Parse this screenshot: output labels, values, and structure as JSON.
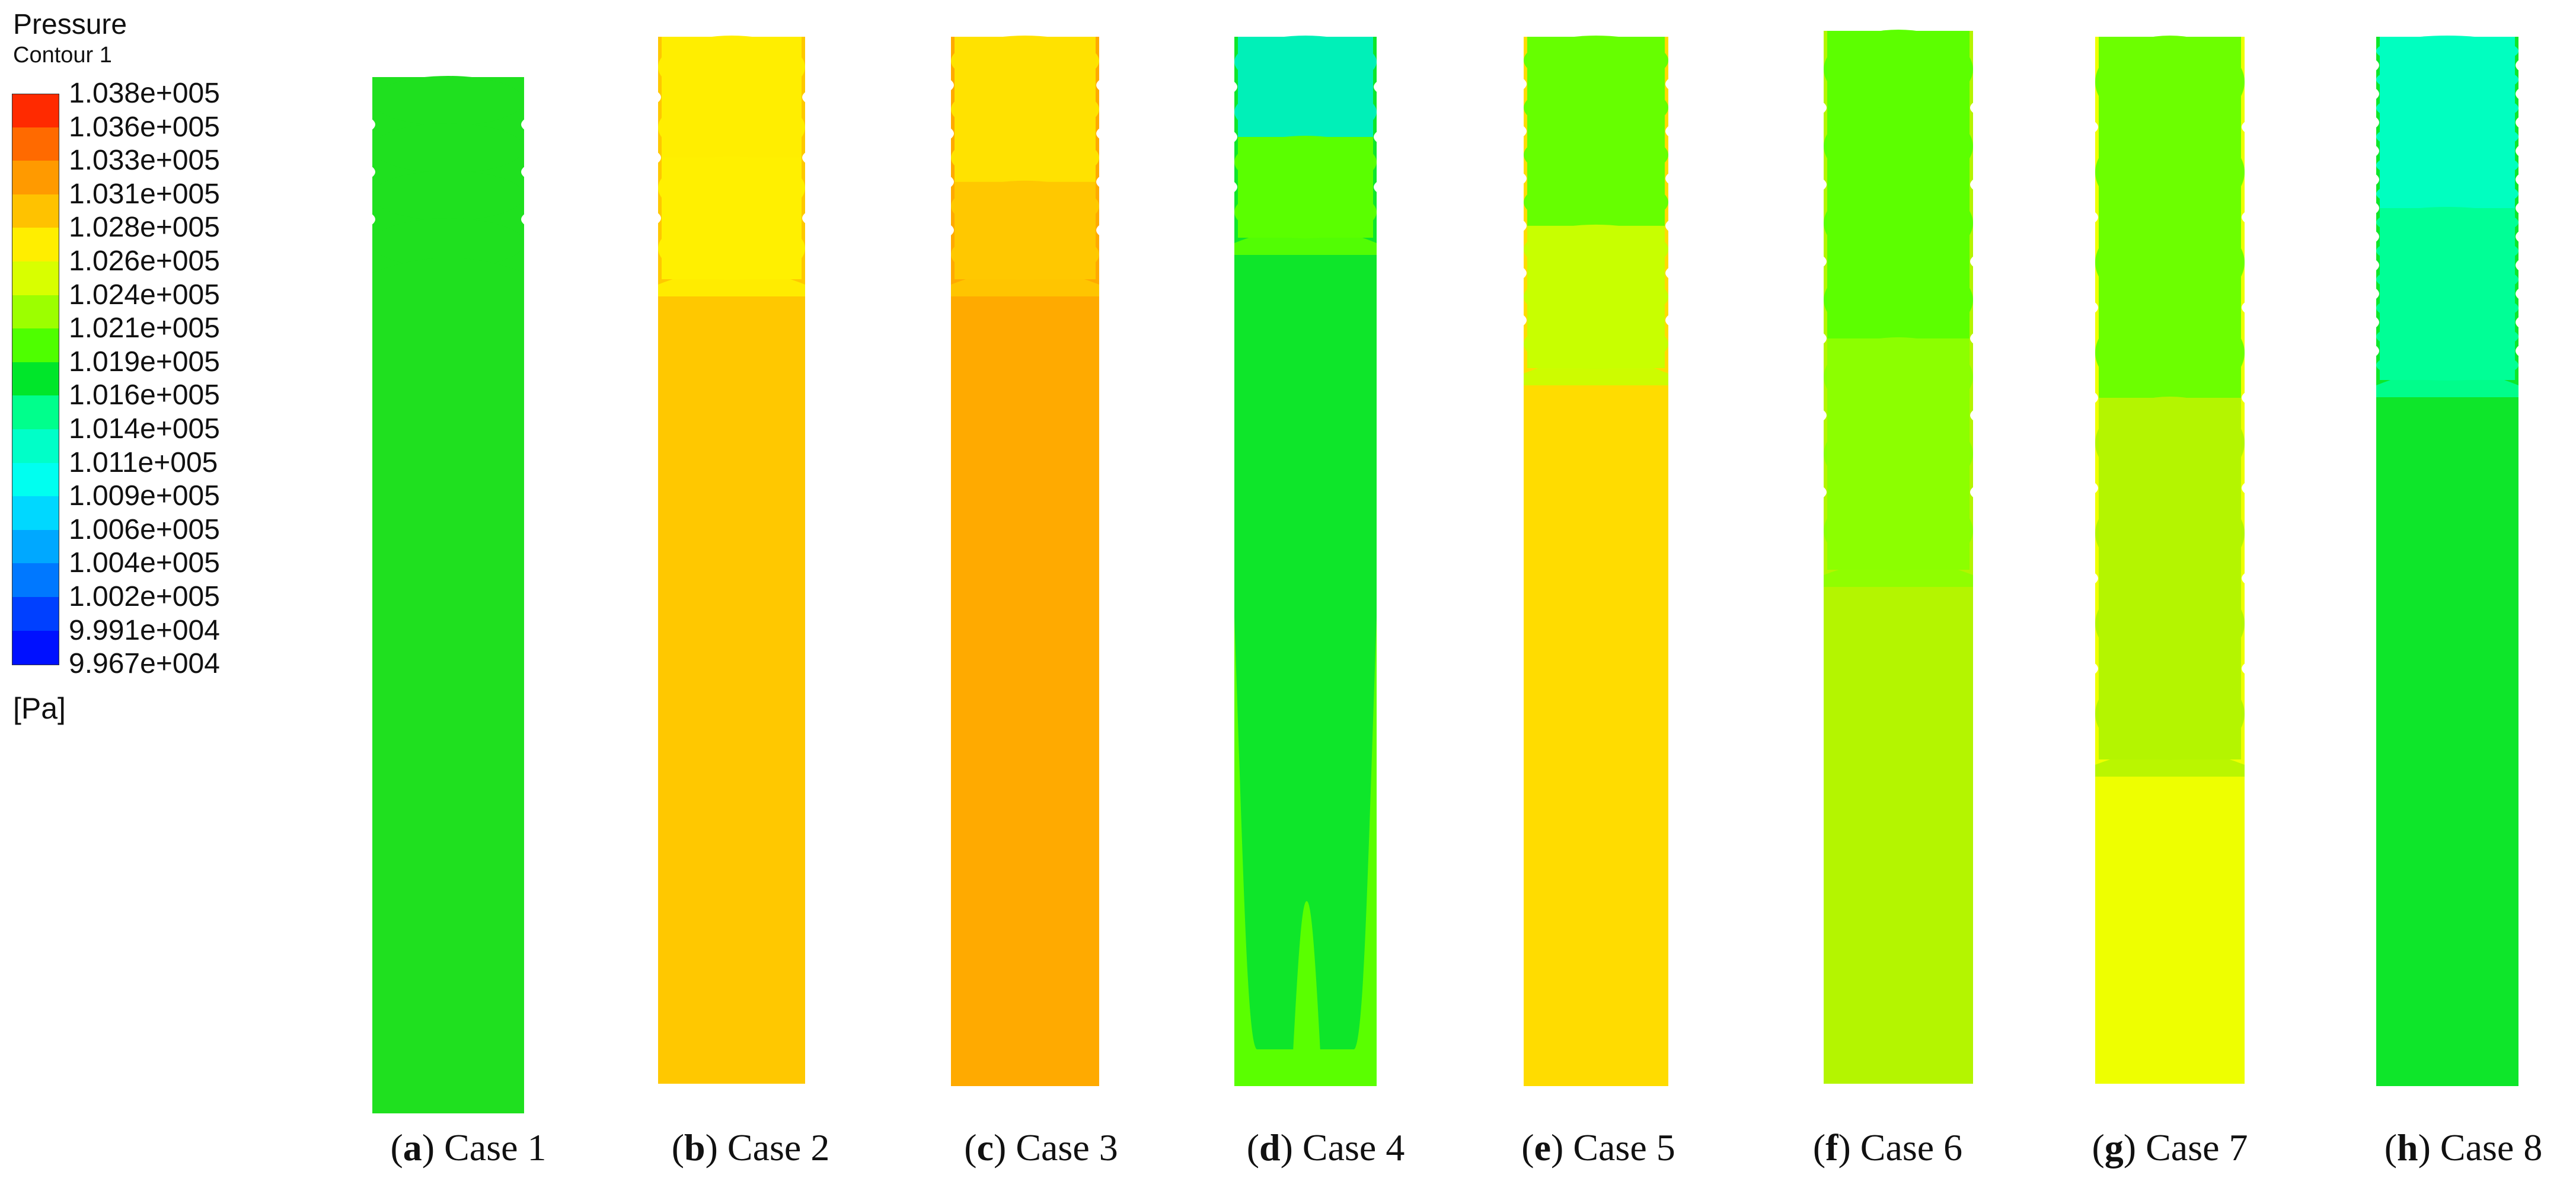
{
  "legend": {
    "title": "Pressure",
    "subtitle": "Contour 1",
    "unit": "[Pa]",
    "levels": [
      {
        "label": "1.038e+005",
        "color": "#ff2a00"
      },
      {
        "label": "1.036e+005",
        "color": "#ff6a00"
      },
      {
        "label": "1.033e+005",
        "color": "#ff9a00"
      },
      {
        "label": "1.031e+005",
        "color": "#ffc200"
      },
      {
        "label": "1.028e+005",
        "color": "#ffee00"
      },
      {
        "label": "1.026e+005",
        "color": "#d8ff00"
      },
      {
        "label": "1.024e+005",
        "color": "#9cff00"
      },
      {
        "label": "1.021e+005",
        "color": "#4eff00"
      },
      {
        "label": "1.019e+005",
        "color": "#00e62a"
      },
      {
        "label": "1.016e+005",
        "color": "#00ff8c"
      },
      {
        "label": "1.014e+005",
        "color": "#00ffc8"
      },
      {
        "label": "1.011e+005",
        "color": "#00fff0"
      },
      {
        "label": "1.009e+005",
        "color": "#00d8ff"
      },
      {
        "label": "1.006e+005",
        "color": "#00a8ff"
      },
      {
        "label": "1.004e+005",
        "color": "#0078ff"
      },
      {
        "label": "1.002e+005",
        "color": "#0040ff"
      },
      {
        "label": "9.991e+004",
        "color": "#0010ff"
      },
      {
        "label": "9.967e+004",
        "color": ""
      }
    ]
  },
  "panels": [
    {
      "letter": "a",
      "label": "Case 1",
      "base_color": "#1fe01f",
      "top_color": "#1fe01f",
      "band_color": "#1fe01f"
    },
    {
      "letter": "b",
      "label": "Case 2",
      "base_color": "#ffc800",
      "top_color": "#ffee00",
      "band_color": "#fff000"
    },
    {
      "letter": "c",
      "label": "Case 3",
      "base_color": "#ffaa00",
      "top_color": "#ffe200",
      "band_color": "#ffc800"
    },
    {
      "letter": "d",
      "label": "Case 4",
      "base_color": "#0ee62a",
      "top_color": "#00f0b8",
      "band_color": "#5aff00"
    },
    {
      "letter": "e",
      "label": "Case 5",
      "base_color": "#ffdc00",
      "top_color": "#66ff00",
      "band_color": "#c8ff00"
    },
    {
      "letter": "f",
      "label": "Case 6",
      "base_color": "#b4f500",
      "top_color": "#5cff00",
      "band_color": "#8cff00"
    },
    {
      "letter": "g",
      "label": "Case 7",
      "base_color": "#eeff00",
      "top_color": "#6cff00",
      "band_color": "#b4f500"
    },
    {
      "letter": "h",
      "label": "Case 8",
      "base_color": "#0ee62a",
      "top_color": "#00ffc0",
      "band_color": "#00ff96"
    }
  ]
}
